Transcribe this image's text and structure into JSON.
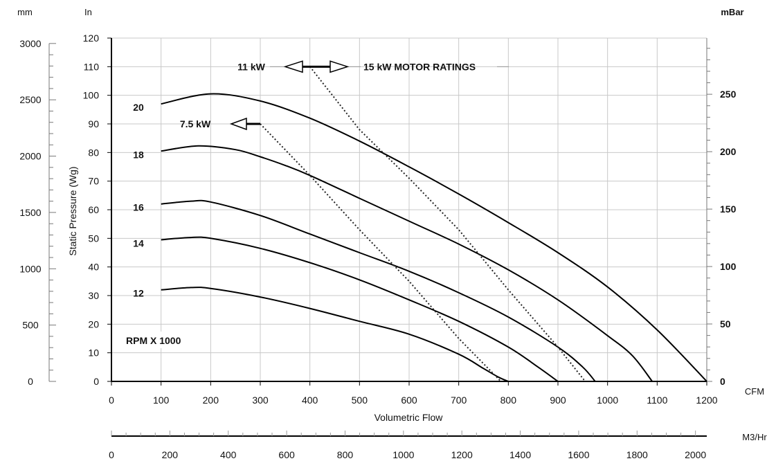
{
  "chart_data": {
    "type": "line",
    "xlabel": "Volumetric Flow",
    "ylabel": "Static Pressure (Wg)",
    "x_unit": "CFM",
    "y_unit": "In",
    "left_unit": "mm",
    "right_unit": "mBar",
    "bottom_unit": "M3/Hr",
    "xlim": [
      0,
      1200
    ],
    "ylim": [
      0,
      120
    ],
    "grid": true,
    "x_ticks": [
      "0",
      "100",
      "200",
      "300",
      "400",
      "500",
      "600",
      "700",
      "800",
      "900",
      "1000",
      "1100",
      "1200"
    ],
    "y_ticks": [
      "0",
      "10",
      "20",
      "30",
      "40",
      "50",
      "60",
      "70",
      "80",
      "90",
      "100",
      "110",
      "120"
    ],
    "mm_ticks": [
      "0",
      "500",
      "1000",
      "1500",
      "2000",
      "2500",
      "3000"
    ],
    "mbar_ticks": [
      "0",
      "50",
      "100",
      "150",
      "200",
      "250"
    ],
    "m3hr_ticks": [
      "0",
      "200",
      "400",
      "600",
      "800",
      "1000",
      "1200",
      "1400",
      "1600",
      "1800",
      "2000"
    ],
    "rpm_note": "RPM X 1000",
    "series": [
      {
        "name": "20",
        "x": [
          100,
          200,
          300,
          400,
          500,
          600,
          700,
          800,
          900,
          1000,
          1100,
          1200
        ],
        "y": [
          97,
          100.5,
          98,
          92,
          84,
          75,
          65.5,
          55.5,
          45,
          33,
          18,
          0
        ]
      },
      {
        "name": "18",
        "x": [
          100,
          175,
          250,
          300,
          350,
          400,
          500,
          600,
          700,
          800,
          900,
          1000,
          1050,
          1090
        ],
        "y": [
          80.5,
          82.3,
          81,
          78.5,
          75.5,
          72,
          64,
          56,
          48,
          39,
          28.5,
          16,
          9,
          0
        ]
      },
      {
        "name": "16",
        "x": [
          100,
          160,
          200,
          300,
          400,
          500,
          600,
          700,
          800,
          900,
          950,
          975
        ],
        "y": [
          62,
          63,
          62.7,
          58,
          51.5,
          45,
          38.5,
          31,
          22.5,
          12,
          5,
          0
        ]
      },
      {
        "name": "14",
        "x": [
          100,
          160,
          200,
          300,
          400,
          500,
          600,
          700,
          800,
          860,
          900
        ],
        "y": [
          49.5,
          50.3,
          50,
          46.5,
          41.5,
          35.5,
          28.5,
          21,
          12,
          5,
          0
        ]
      },
      {
        "name": "12",
        "x": [
          100,
          160,
          200,
          300,
          400,
          500,
          600,
          700,
          750,
          780,
          800
        ],
        "y": [
          32,
          32.8,
          32.5,
          29.5,
          25.5,
          21,
          16.5,
          9.5,
          4.5,
          1.5,
          0
        ]
      }
    ],
    "motor_ratings": [
      {
        "label": "7.5 kW",
        "x": [
          300,
          400,
          500,
          600,
          700,
          785
        ],
        "y": [
          90,
          72,
          53,
          35,
          15,
          0
        ]
      },
      {
        "label": "11 kW",
        "x": [
          400,
          500,
          600,
          700,
          800,
          900,
          955
        ],
        "y": [
          110,
          88,
          71,
          53,
          32,
          12,
          0
        ]
      }
    ],
    "motor_ratings_title": "15 kW MOTOR RATINGS"
  }
}
